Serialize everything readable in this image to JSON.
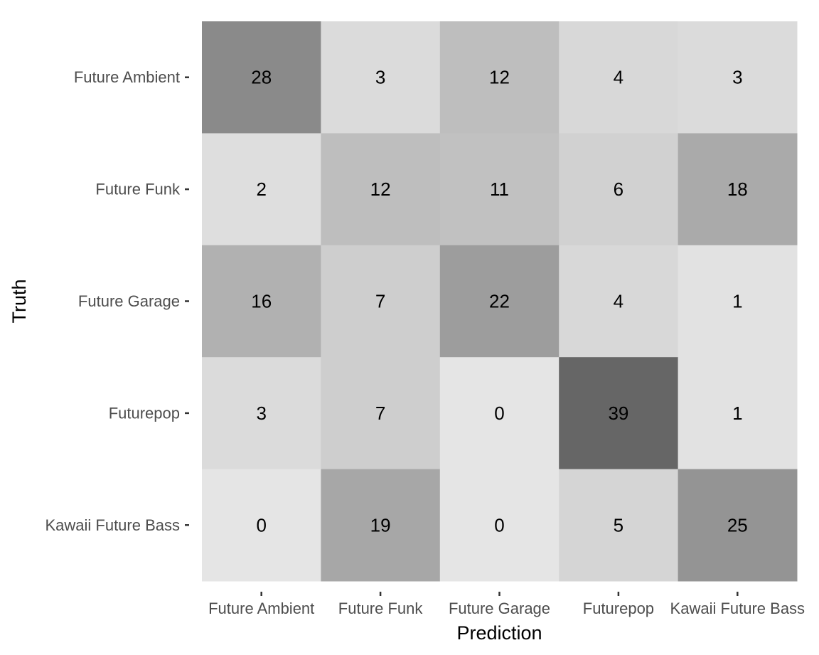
{
  "chart_data": {
    "type": "heatmap",
    "title": "",
    "xlabel": "Prediction",
    "ylabel": "Truth",
    "x_categories": [
      "Future Ambient",
      "Future Funk",
      "Future Garage",
      "Futurepop",
      "Kawaii Future Bass"
    ],
    "y_categories": [
      "Future Ambient",
      "Future Funk",
      "Future Garage",
      "Futurepop",
      "Kawaii Future Bass"
    ],
    "values": [
      [
        28,
        3,
        12,
        4,
        3
      ],
      [
        2,
        12,
        11,
        6,
        18
      ],
      [
        16,
        7,
        22,
        4,
        1
      ],
      [
        3,
        7,
        0,
        39,
        1
      ],
      [
        0,
        19,
        0,
        5,
        25
      ]
    ],
    "color_low": "#e5e5e5",
    "color_high": "#666666",
    "grid": false,
    "legend": "none"
  }
}
